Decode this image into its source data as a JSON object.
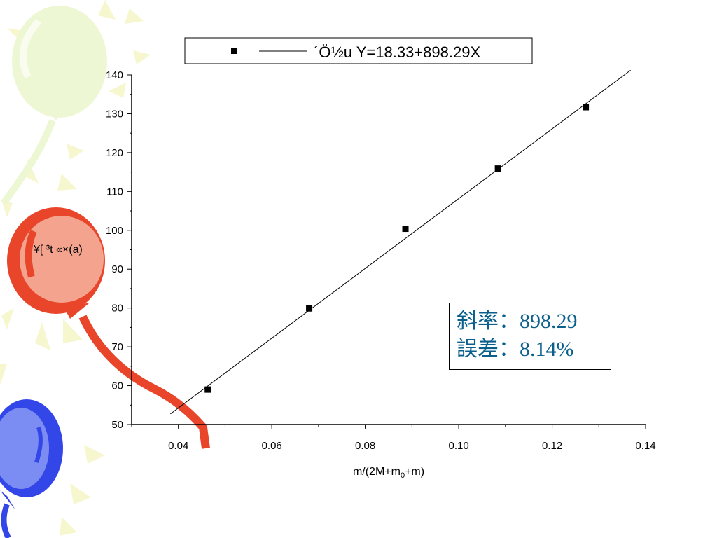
{
  "chart_data": {
    "type": "scatter",
    "legend": {
      "label": "´Ö½u Y=18.33+898.29X",
      "position": "top"
    },
    "ylabel": "¥[ ³t «×(a)",
    "xlabel_parts": {
      "main": "m/(2M+m",
      "sub": "0",
      "tail": "+m)"
    },
    "xlim": [
      0.03,
      0.14
    ],
    "ylim": [
      50,
      140
    ],
    "x_ticks": [
      "0.04",
      "0.06",
      "0.08",
      "0.10",
      "0.12",
      "0.14"
    ],
    "x_tick_values": [
      0.04,
      0.06,
      0.08,
      0.1,
      0.12,
      0.14
    ],
    "y_ticks": [
      "50",
      "60",
      "70",
      "80",
      "90",
      "100",
      "110",
      "120",
      "130",
      "140"
    ],
    "y_tick_values": [
      50,
      60,
      70,
      80,
      90,
      100,
      110,
      120,
      130,
      140
    ],
    "series": [
      {
        "points": [
          {
            "x": 0.0463,
            "y": 59.0
          },
          {
            "x": 0.068,
            "y": 79.9
          },
          {
            "x": 0.0886,
            "y": 100.4
          },
          {
            "x": 0.1084,
            "y": 115.9
          },
          {
            "x": 0.1272,
            "y": 131.7
          }
        ],
        "marker": "square",
        "color": "#000000"
      }
    ],
    "fit_line": {
      "intercept": 18.33,
      "slope": 898.29,
      "x_range": [
        0.0383,
        0.1368
      ],
      "color": "#000000"
    },
    "grid": false
  },
  "info_box": {
    "slope_line": "斜率：898.29",
    "error_line": "誤差：8.14%"
  },
  "decoration": {
    "balloon_colors": [
      "#eef7d4",
      "#e8452a",
      "#f4a48e",
      "#3346e8",
      "#7b8cf2",
      "#f6f6d0"
    ]
  }
}
